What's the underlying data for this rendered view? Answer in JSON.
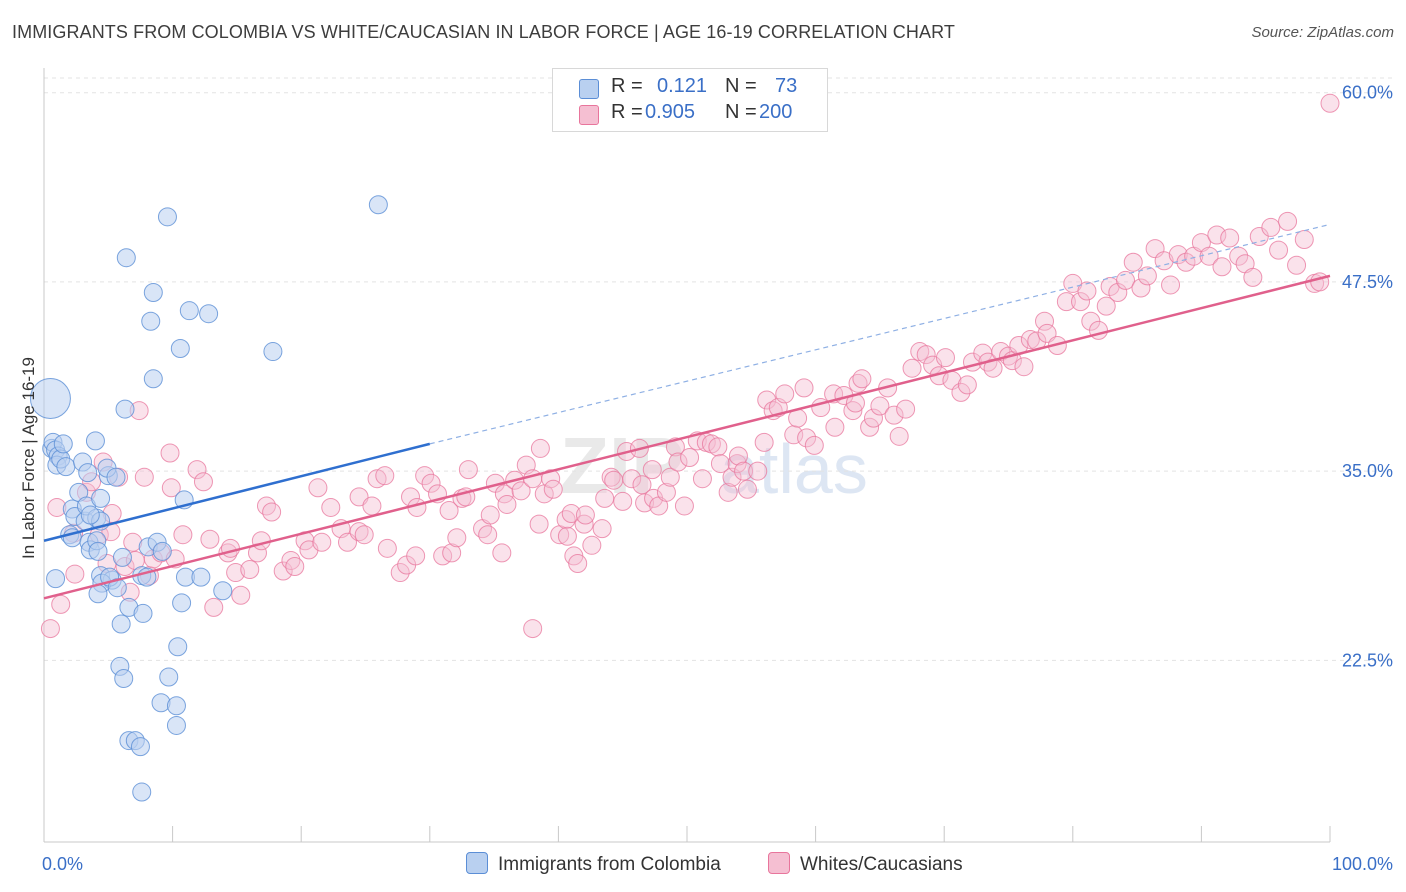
{
  "title": "IMMIGRANTS FROM COLOMBIA VS WHITE/CAUCASIAN IN LABOR FORCE | AGE 16-19 CORRELATION CHART",
  "source": "Source: ZipAtlas.com",
  "watermark": {
    "zip": "ZIP",
    "atlas": "atlas"
  },
  "legend": {
    "series1": {
      "r_label": "R =",
      "r_value": "0.121",
      "n_label": "N =",
      "n_value": "73"
    },
    "series2": {
      "r_label": "R =",
      "r_value": "0.905",
      "n_label": "N =",
      "n_value": "200"
    }
  },
  "bottom_legend": {
    "series1": "Immigrants from Colombia",
    "series2": "Whites/Caucasians"
  },
  "colors": {
    "blue": "#5b8ed6",
    "blue_fill": "#b9d0f0",
    "pink": "#e8759c",
    "pink_fill": "#f5bfd2",
    "blue_line": "#2f6fcf",
    "pink_line": "#e0608c",
    "label_blue": "#3a6fc7"
  },
  "chart_data": {
    "type": "scatter",
    "title": "IMMIGRANTS FROM COLOMBIA VS WHITE/CAUCASIAN IN LABOR FORCE | AGE 16-19 CORRELATION CHART",
    "xlabel": "",
    "ylabel": "In Labor Force | Age 16-19",
    "xlim": [
      0,
      100
    ],
    "ylim": [
      10.5,
      61.5
    ],
    "x_tick_labels": [
      "0.0%",
      "100.0%"
    ],
    "y_ticks": [
      22.5,
      35.0,
      47.5,
      60.0
    ],
    "y_tick_labels": [
      "22.5%",
      "35.0%",
      "47.5%",
      "60.0%"
    ],
    "grid": true,
    "series": [
      {
        "name": "Immigrants from Colombia",
        "R": 0.121,
        "N": 73,
        "trend": {
          "x0": 0,
          "y0": 30.4,
          "x1": 30,
          "y1": 36.8,
          "dashed_to": {
            "x": 100,
            "y": 51.3
          }
        },
        "points": [
          [
            0.5,
            39.8
          ],
          [
            0.6,
            36.5
          ],
          [
            0.7,
            36.9
          ],
          [
            0.9,
            36.4
          ],
          [
            1.1,
            36.0
          ],
          [
            1.0,
            35.4
          ],
          [
            1.3,
            35.8
          ],
          [
            1.5,
            36.8
          ],
          [
            1.7,
            35.3
          ],
          [
            0.9,
            27.9
          ],
          [
            2.2,
            32.5
          ],
          [
            2.4,
            32.0
          ],
          [
            2.0,
            30.8
          ],
          [
            2.2,
            30.6
          ],
          [
            2.7,
            33.6
          ],
          [
            3.2,
            31.7
          ],
          [
            3.3,
            32.7
          ],
          [
            3.5,
            30.3
          ],
          [
            3.6,
            29.8
          ],
          [
            4.1,
            30.4
          ],
          [
            4.1,
            31.9
          ],
          [
            4.2,
            29.7
          ],
          [
            4.4,
            31.7
          ],
          [
            3.0,
            35.6
          ],
          [
            3.4,
            34.9
          ],
          [
            3.6,
            32.1
          ],
          [
            4.0,
            37.0
          ],
          [
            4.4,
            33.2
          ],
          [
            5.0,
            34.7
          ],
          [
            4.9,
            35.2
          ],
          [
            5.6,
            34.6
          ],
          [
            4.4,
            28.1
          ],
          [
            5.3,
            27.8
          ],
          [
            4.5,
            27.6
          ],
          [
            4.2,
            26.9
          ],
          [
            5.1,
            28.0
          ],
          [
            5.7,
            27.3
          ],
          [
            6.3,
            39.1
          ],
          [
            6.4,
            49.1
          ],
          [
            6.6,
            26.0
          ],
          [
            6.0,
            24.9
          ],
          [
            7.7,
            25.6
          ],
          [
            8.1,
            30.0
          ],
          [
            8.3,
            44.9
          ],
          [
            8.5,
            46.8
          ],
          [
            8.5,
            41.1
          ],
          [
            8.8,
            30.3
          ],
          [
            9.1,
            19.7
          ],
          [
            9.7,
            21.4
          ],
          [
            9.6,
            51.8
          ],
          [
            10.3,
            19.5
          ],
          [
            10.3,
            18.2
          ],
          [
            10.4,
            23.4
          ],
          [
            10.6,
            43.1
          ],
          [
            10.7,
            26.3
          ],
          [
            10.9,
            33.1
          ],
          [
            11.0,
            28.0
          ],
          [
            11.3,
            45.6
          ],
          [
            12.2,
            28.0
          ],
          [
            12.8,
            45.4
          ],
          [
            13.9,
            27.1
          ],
          [
            17.8,
            42.9
          ],
          [
            26.0,
            52.6
          ],
          [
            5.9,
            22.1
          ],
          [
            6.2,
            21.3
          ],
          [
            6.6,
            17.2
          ],
          [
            7.1,
            17.2
          ],
          [
            7.5,
            16.8
          ],
          [
            7.6,
            13.8
          ],
          [
            7.6,
            28.1
          ],
          [
            6.1,
            29.3
          ],
          [
            9.2,
            29.7
          ],
          [
            8.0,
            28.0
          ]
        ]
      },
      {
        "name": "Whites/Caucasians",
        "R": 0.905,
        "N": 200,
        "trend": {
          "x0": 0,
          "y0": 26.6,
          "x1": 100,
          "y1": 47.9
        },
        "points": [
          [
            0.5,
            24.6
          ],
          [
            1.0,
            32.6
          ],
          [
            1.3,
            26.2
          ],
          [
            2.3,
            30.9
          ],
          [
            2.4,
            28.2
          ],
          [
            3.3,
            33.6
          ],
          [
            3.7,
            34.3
          ],
          [
            4.3,
            30.8
          ],
          [
            4.6,
            35.6
          ],
          [
            4.9,
            28.9
          ],
          [
            5.2,
            31.0
          ],
          [
            5.3,
            32.2
          ],
          [
            5.8,
            34.6
          ],
          [
            6.3,
            28.7
          ],
          [
            6.7,
            27.0
          ],
          [
            6.9,
            30.3
          ],
          [
            7.1,
            29.1
          ],
          [
            7.4,
            39.0
          ],
          [
            7.8,
            34.6
          ],
          [
            8.2,
            28.1
          ],
          [
            8.5,
            29.2
          ],
          [
            9.1,
            29.6
          ],
          [
            9.9,
            33.9
          ],
          [
            9.8,
            36.2
          ],
          [
            10.2,
            29.2
          ],
          [
            10.8,
            30.8
          ],
          [
            11.9,
            35.1
          ],
          [
            12.4,
            34.3
          ],
          [
            12.9,
            30.5
          ],
          [
            13.2,
            26.0
          ],
          [
            14.3,
            29.6
          ],
          [
            14.5,
            29.9
          ],
          [
            14.9,
            28.3
          ],
          [
            15.3,
            26.8
          ],
          [
            16.0,
            28.5
          ],
          [
            16.6,
            29.6
          ],
          [
            16.9,
            30.4
          ],
          [
            17.3,
            32.7
          ],
          [
            17.7,
            32.3
          ],
          [
            18.6,
            28.4
          ],
          [
            19.2,
            29.1
          ],
          [
            19.5,
            28.7
          ],
          [
            20.3,
            30.4
          ],
          [
            20.6,
            29.8
          ],
          [
            21.3,
            33.9
          ],
          [
            21.6,
            30.3
          ],
          [
            22.3,
            32.6
          ],
          [
            23.1,
            31.2
          ],
          [
            23.6,
            30.3
          ],
          [
            24.5,
            31.0
          ],
          [
            24.5,
            33.3
          ],
          [
            24.9,
            30.8
          ],
          [
            25.5,
            32.7
          ],
          [
            25.9,
            34.5
          ],
          [
            26.5,
            34.7
          ],
          [
            26.7,
            29.9
          ],
          [
            27.7,
            28.3
          ],
          [
            28.2,
            28.8
          ],
          [
            28.5,
            33.3
          ],
          [
            28.9,
            29.4
          ],
          [
            29.0,
            32.6
          ],
          [
            29.6,
            34.7
          ],
          [
            30.1,
            34.2
          ],
          [
            30.6,
            33.5
          ],
          [
            31.0,
            29.4
          ],
          [
            31.5,
            32.4
          ],
          [
            31.7,
            29.6
          ],
          [
            32.1,
            30.6
          ],
          [
            32.5,
            33.2
          ],
          [
            32.8,
            33.3
          ],
          [
            33.0,
            35.1
          ],
          [
            34.1,
            31.2
          ],
          [
            34.5,
            30.8
          ],
          [
            34.7,
            32.1
          ],
          [
            35.1,
            34.2
          ],
          [
            35.6,
            29.6
          ],
          [
            35.8,
            33.5
          ],
          [
            36.0,
            32.8
          ],
          [
            36.6,
            34.4
          ],
          [
            37.1,
            33.7
          ],
          [
            37.5,
            35.4
          ],
          [
            38.0,
            34.5
          ],
          [
            38.0,
            24.6
          ],
          [
            38.5,
            31.5
          ],
          [
            38.6,
            36.5
          ],
          [
            38.9,
            33.5
          ],
          [
            39.4,
            34.5
          ],
          [
            39.6,
            33.8
          ],
          [
            40.1,
            30.8
          ],
          [
            40.6,
            31.8
          ],
          [
            40.7,
            30.7
          ],
          [
            41.0,
            32.2
          ],
          [
            41.2,
            29.4
          ],
          [
            41.5,
            28.9
          ],
          [
            42.0,
            31.5
          ],
          [
            42.1,
            32.1
          ],
          [
            42.6,
            30.1
          ],
          [
            43.4,
            31.2
          ],
          [
            43.6,
            33.2
          ],
          [
            44.1,
            34.6
          ],
          [
            44.3,
            34.4
          ],
          [
            45.0,
            33.0
          ],
          [
            45.3,
            36.3
          ],
          [
            45.7,
            34.5
          ],
          [
            46.3,
            36.5
          ],
          [
            46.5,
            34.1
          ],
          [
            46.7,
            32.9
          ],
          [
            47.3,
            35.1
          ],
          [
            47.4,
            33.2
          ],
          [
            47.8,
            32.7
          ],
          [
            48.4,
            33.6
          ],
          [
            48.7,
            34.6
          ],
          [
            49.1,
            36.6
          ],
          [
            49.3,
            35.6
          ],
          [
            49.8,
            32.7
          ],
          [
            50.2,
            35.9
          ],
          [
            50.8,
            37.0
          ],
          [
            51.2,
            34.5
          ],
          [
            51.5,
            36.9
          ],
          [
            51.9,
            36.8
          ],
          [
            52.4,
            36.6
          ],
          [
            52.6,
            35.5
          ],
          [
            53.2,
            33.6
          ],
          [
            53.5,
            34.6
          ],
          [
            53.9,
            35.5
          ],
          [
            54.0,
            36.0
          ],
          [
            54.4,
            35.0
          ],
          [
            54.7,
            33.8
          ],
          [
            55.5,
            35.0
          ],
          [
            56.0,
            36.9
          ],
          [
            56.2,
            39.7
          ],
          [
            56.7,
            39.0
          ],
          [
            57.1,
            39.2
          ],
          [
            57.6,
            40.1
          ],
          [
            58.3,
            37.4
          ],
          [
            58.6,
            38.5
          ],
          [
            59.1,
            40.5
          ],
          [
            59.3,
            37.2
          ],
          [
            59.9,
            36.7
          ],
          [
            60.4,
            39.2
          ],
          [
            61.4,
            40.1
          ],
          [
            61.5,
            37.9
          ],
          [
            62.2,
            40.0
          ],
          [
            62.9,
            39.0
          ],
          [
            63.1,
            39.5
          ],
          [
            63.3,
            40.8
          ],
          [
            63.6,
            41.1
          ],
          [
            64.2,
            37.9
          ],
          [
            64.5,
            38.5
          ],
          [
            65.0,
            39.3
          ],
          [
            65.6,
            40.5
          ],
          [
            66.1,
            38.7
          ],
          [
            66.5,
            37.3
          ],
          [
            67.0,
            39.1
          ],
          [
            67.5,
            41.8
          ],
          [
            68.1,
            42.9
          ],
          [
            68.6,
            42.7
          ],
          [
            69.1,
            42.0
          ],
          [
            69.6,
            41.3
          ],
          [
            70.1,
            42.5
          ],
          [
            70.6,
            41.0
          ],
          [
            71.3,
            40.2
          ],
          [
            71.8,
            40.7
          ],
          [
            72.2,
            42.2
          ],
          [
            73.0,
            42.8
          ],
          [
            73.4,
            42.2
          ],
          [
            73.8,
            41.8
          ],
          [
            74.4,
            42.9
          ],
          [
            75.0,
            42.6
          ],
          [
            75.3,
            42.3
          ],
          [
            75.8,
            43.3
          ],
          [
            76.2,
            41.9
          ],
          [
            76.7,
            43.7
          ],
          [
            77.2,
            43.6
          ],
          [
            77.8,
            44.9
          ],
          [
            78.0,
            44.1
          ],
          [
            78.8,
            43.3
          ],
          [
            79.5,
            46.2
          ],
          [
            80.0,
            47.4
          ],
          [
            80.6,
            46.2
          ],
          [
            81.1,
            46.9
          ],
          [
            81.4,
            44.9
          ],
          [
            82.0,
            44.3
          ],
          [
            82.6,
            45.9
          ],
          [
            82.9,
            47.2
          ],
          [
            83.5,
            46.8
          ],
          [
            84.1,
            47.6
          ],
          [
            84.7,
            48.8
          ],
          [
            85.3,
            47.1
          ],
          [
            85.8,
            47.9
          ],
          [
            86.4,
            49.7
          ],
          [
            87.1,
            48.9
          ],
          [
            87.6,
            47.3
          ],
          [
            88.2,
            49.3
          ],
          [
            88.8,
            48.8
          ],
          [
            89.4,
            49.2
          ],
          [
            90.0,
            50.1
          ],
          [
            90.6,
            49.2
          ],
          [
            91.2,
            50.6
          ],
          [
            91.6,
            48.5
          ],
          [
            92.2,
            50.4
          ],
          [
            92.9,
            49.2
          ],
          [
            93.4,
            48.7
          ],
          [
            94.0,
            47.8
          ],
          [
            94.5,
            50.5
          ],
          [
            95.4,
            51.1
          ],
          [
            96.0,
            49.6
          ],
          [
            96.7,
            51.5
          ],
          [
            97.4,
            48.6
          ],
          [
            98.0,
            50.3
          ],
          [
            98.8,
            47.4
          ],
          [
            99.2,
            47.5
          ],
          [
            100,
            59.3
          ]
        ]
      }
    ]
  }
}
